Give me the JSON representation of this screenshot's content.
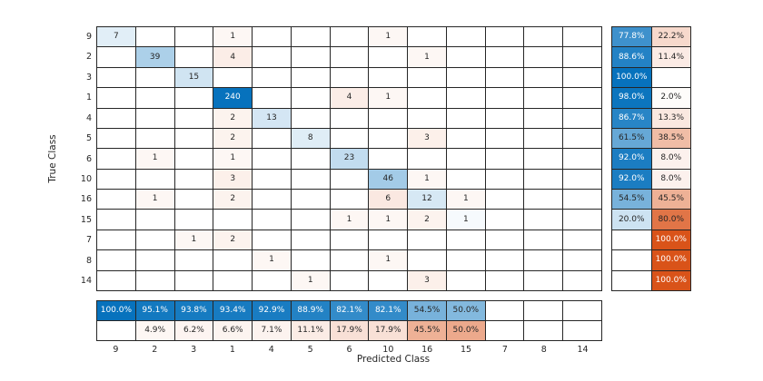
{
  "chart_data": {
    "type": "heatmap",
    "subtype": "confusion-matrix",
    "xlabel": "Predicted Class",
    "ylabel": "True Class",
    "classes": [
      "9",
      "2",
      "3",
      "1",
      "4",
      "5",
      "6",
      "10",
      "16",
      "15",
      "7",
      "8",
      "14"
    ],
    "matrix": [
      [
        7,
        0,
        0,
        1,
        0,
        0,
        0,
        1,
        0,
        0,
        0,
        0,
        0
      ],
      [
        0,
        39,
        0,
        4,
        0,
        0,
        0,
        0,
        1,
        0,
        0,
        0,
        0
      ],
      [
        0,
        0,
        15,
        0,
        0,
        0,
        0,
        0,
        0,
        0,
        0,
        0,
        0
      ],
      [
        0,
        0,
        0,
        240,
        0,
        0,
        4,
        1,
        0,
        0,
        0,
        0,
        0
      ],
      [
        0,
        0,
        0,
        2,
        13,
        0,
        0,
        0,
        0,
        0,
        0,
        0,
        0
      ],
      [
        0,
        0,
        0,
        2,
        0,
        8,
        0,
        0,
        3,
        0,
        0,
        0,
        0
      ],
      [
        0,
        1,
        0,
        1,
        0,
        0,
        23,
        0,
        0,
        0,
        0,
        0,
        0
      ],
      [
        0,
        0,
        0,
        3,
        0,
        0,
        0,
        46,
        1,
        0,
        0,
        0,
        0
      ],
      [
        0,
        1,
        0,
        2,
        0,
        0,
        0,
        6,
        12,
        1,
        0,
        0,
        0
      ],
      [
        0,
        0,
        0,
        0,
        0,
        0,
        1,
        1,
        2,
        1,
        0,
        0,
        0
      ],
      [
        0,
        0,
        1,
        2,
        0,
        0,
        0,
        0,
        0,
        0,
        0,
        0,
        0
      ],
      [
        0,
        0,
        0,
        0,
        1,
        0,
        0,
        1,
        0,
        0,
        0,
        0,
        0
      ],
      [
        0,
        0,
        0,
        0,
        0,
        1,
        0,
        0,
        3,
        0,
        0,
        0,
        0
      ]
    ],
    "row_summary": {
      "correct": [
        "77.8%",
        "88.6%",
        "100.0%",
        "98.0%",
        "86.7%",
        "61.5%",
        "92.0%",
        "92.0%",
        "54.5%",
        "20.0%",
        "",
        "",
        ""
      ],
      "incorrect": [
        "22.2%",
        "11.4%",
        "",
        "2.0%",
        "13.3%",
        "38.5%",
        "8.0%",
        "8.0%",
        "45.5%",
        "80.0%",
        "100.0%",
        "100.0%",
        "100.0%"
      ]
    },
    "col_summary": {
      "correct": [
        "100.0%",
        "95.1%",
        "93.8%",
        "93.4%",
        "92.9%",
        "88.9%",
        "82.1%",
        "82.1%",
        "54.5%",
        "50.0%",
        "",
        "",
        ""
      ],
      "incorrect": [
        "",
        "4.9%",
        "6.2%",
        "6.6%",
        "7.1%",
        "11.1%",
        "17.9%",
        "17.9%",
        "45.5%",
        "50.0%",
        "",
        "",
        ""
      ]
    },
    "colors": {
      "correct_base": "#0772BD",
      "incorrect_base": "#D95319",
      "grid_line": "#262626",
      "text": "#262626",
      "text_on_dark": "#FFFFFF"
    }
  }
}
